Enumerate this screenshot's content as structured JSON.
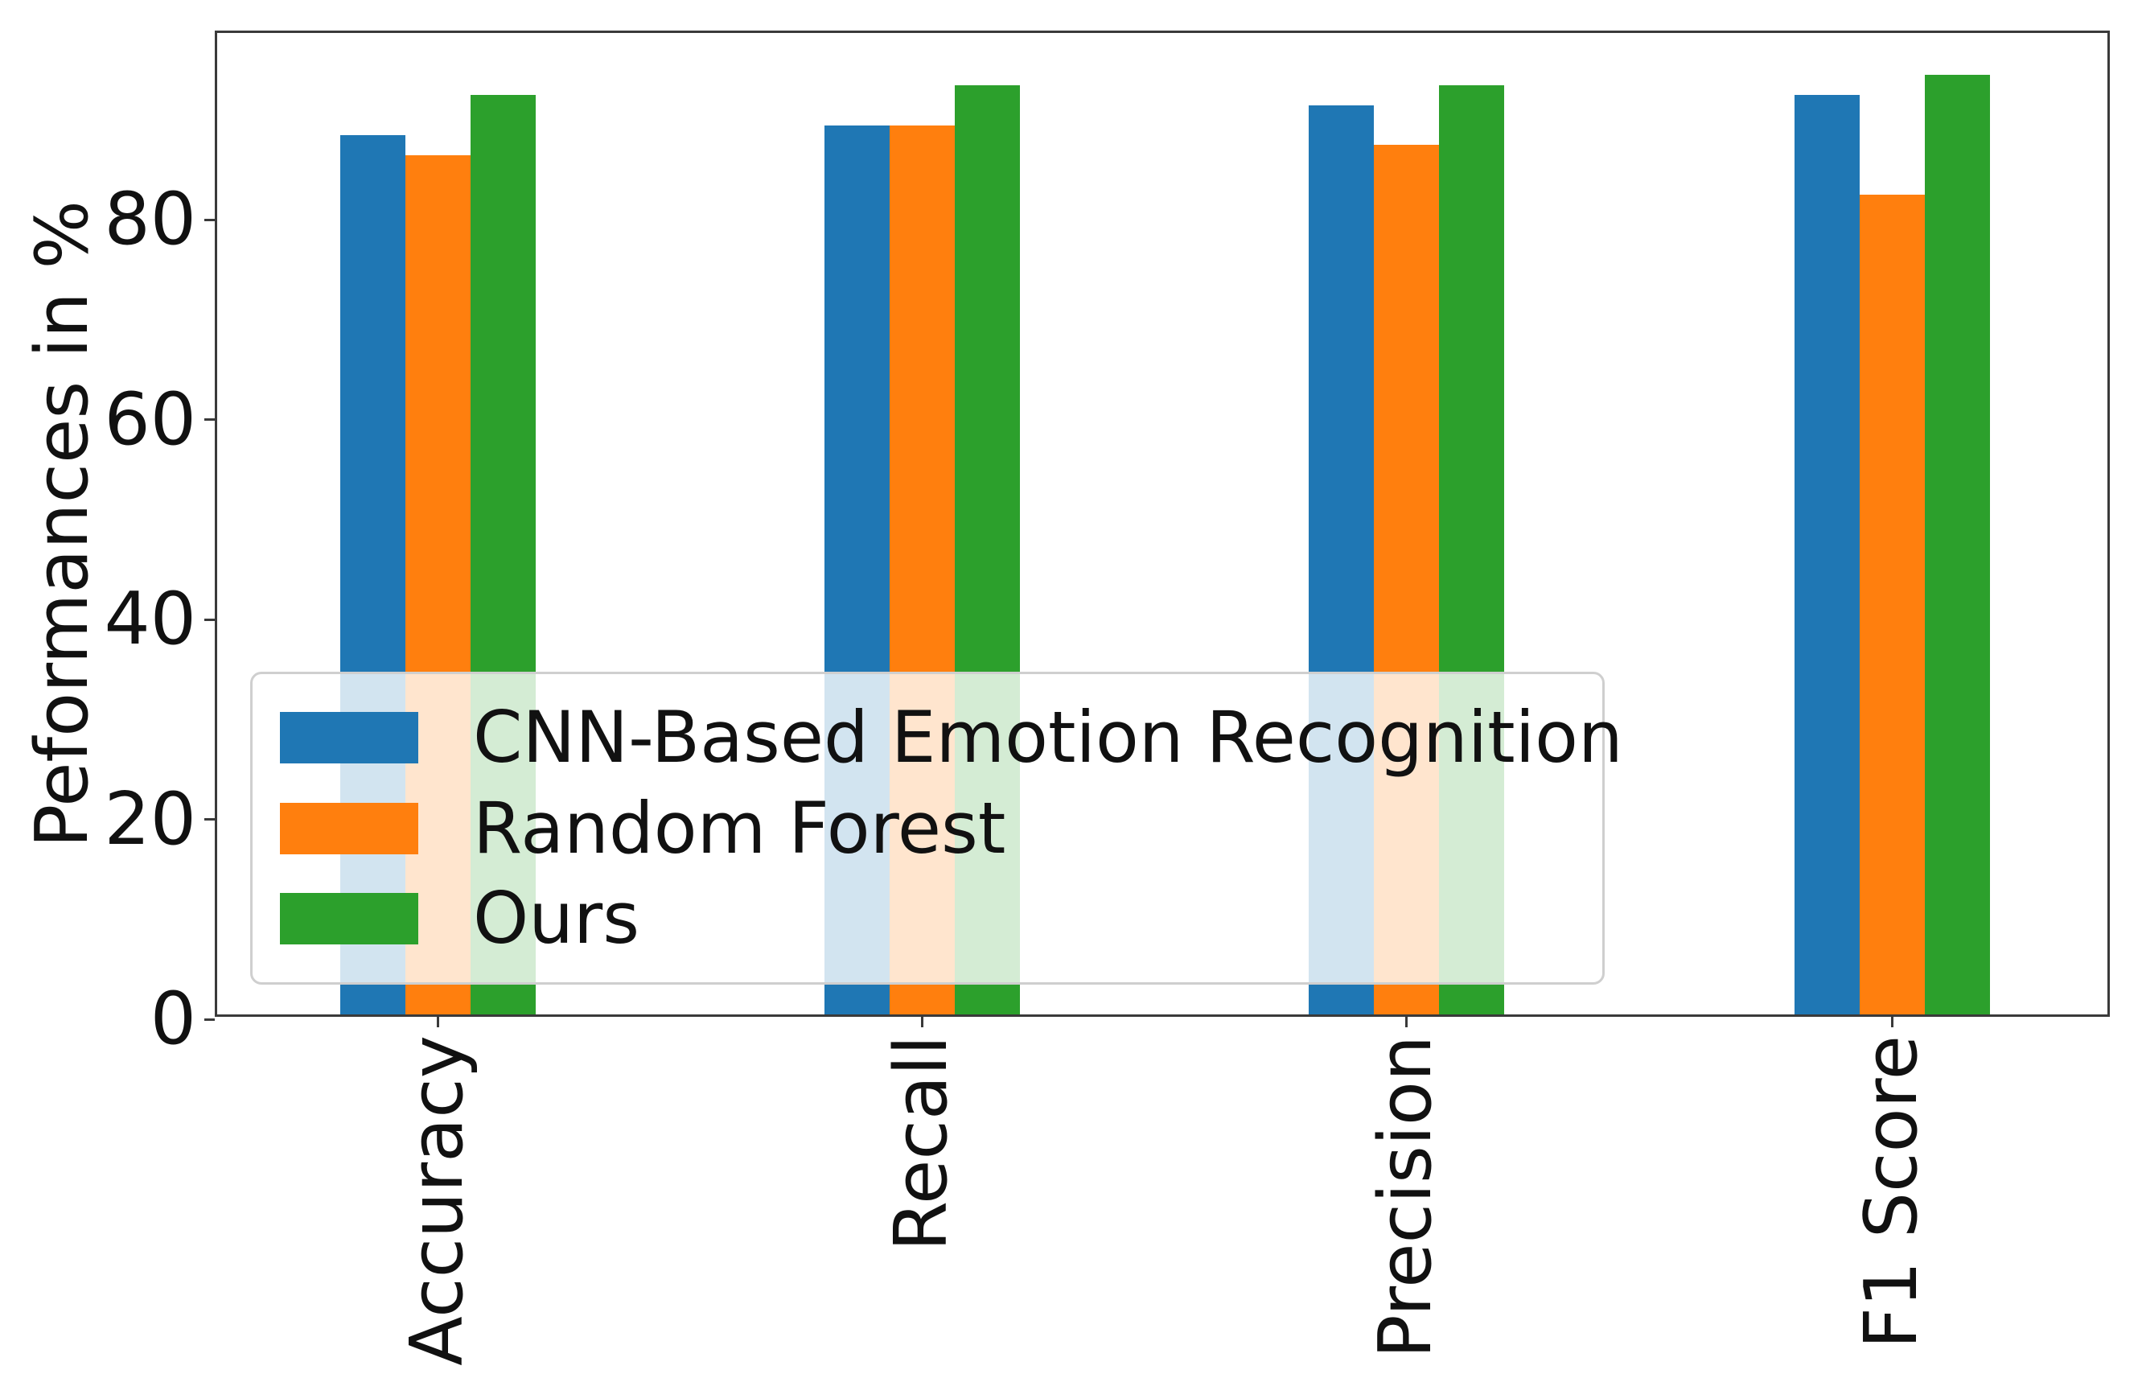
{
  "figure": {
    "background": "#ffffff",
    "axis_color": "#3a3a3a",
    "text_color": "#111111",
    "legend_border_color": "#cfcfcf",
    "legend_background": "rgba(255,255,255,0.8)"
  },
  "chart_data": {
    "type": "bar",
    "title": "",
    "xlabel": "",
    "ylabel": "Peformances in %",
    "categories": [
      "Accuracy",
      "Recall",
      "Precision",
      "F1 Score"
    ],
    "series": [
      {
        "name": "CNN-Based Emotion Recognition",
        "color": "#1f77b4",
        "values": [
          88,
          89,
          91,
          92
        ]
      },
      {
        "name": "Random Forest",
        "color": "#ff7f0e",
        "values": [
          86,
          89,
          87,
          82
        ]
      },
      {
        "name": "Ours",
        "color": "#2ca02c",
        "values": [
          92,
          93,
          93,
          94
        ]
      }
    ],
    "yticks": [
      0,
      20,
      40,
      60,
      80
    ],
    "ylim": [
      0,
      98.7
    ],
    "grid": false,
    "legend_position": "lower-left-inside",
    "x_tick_rotation_deg": 90
  }
}
